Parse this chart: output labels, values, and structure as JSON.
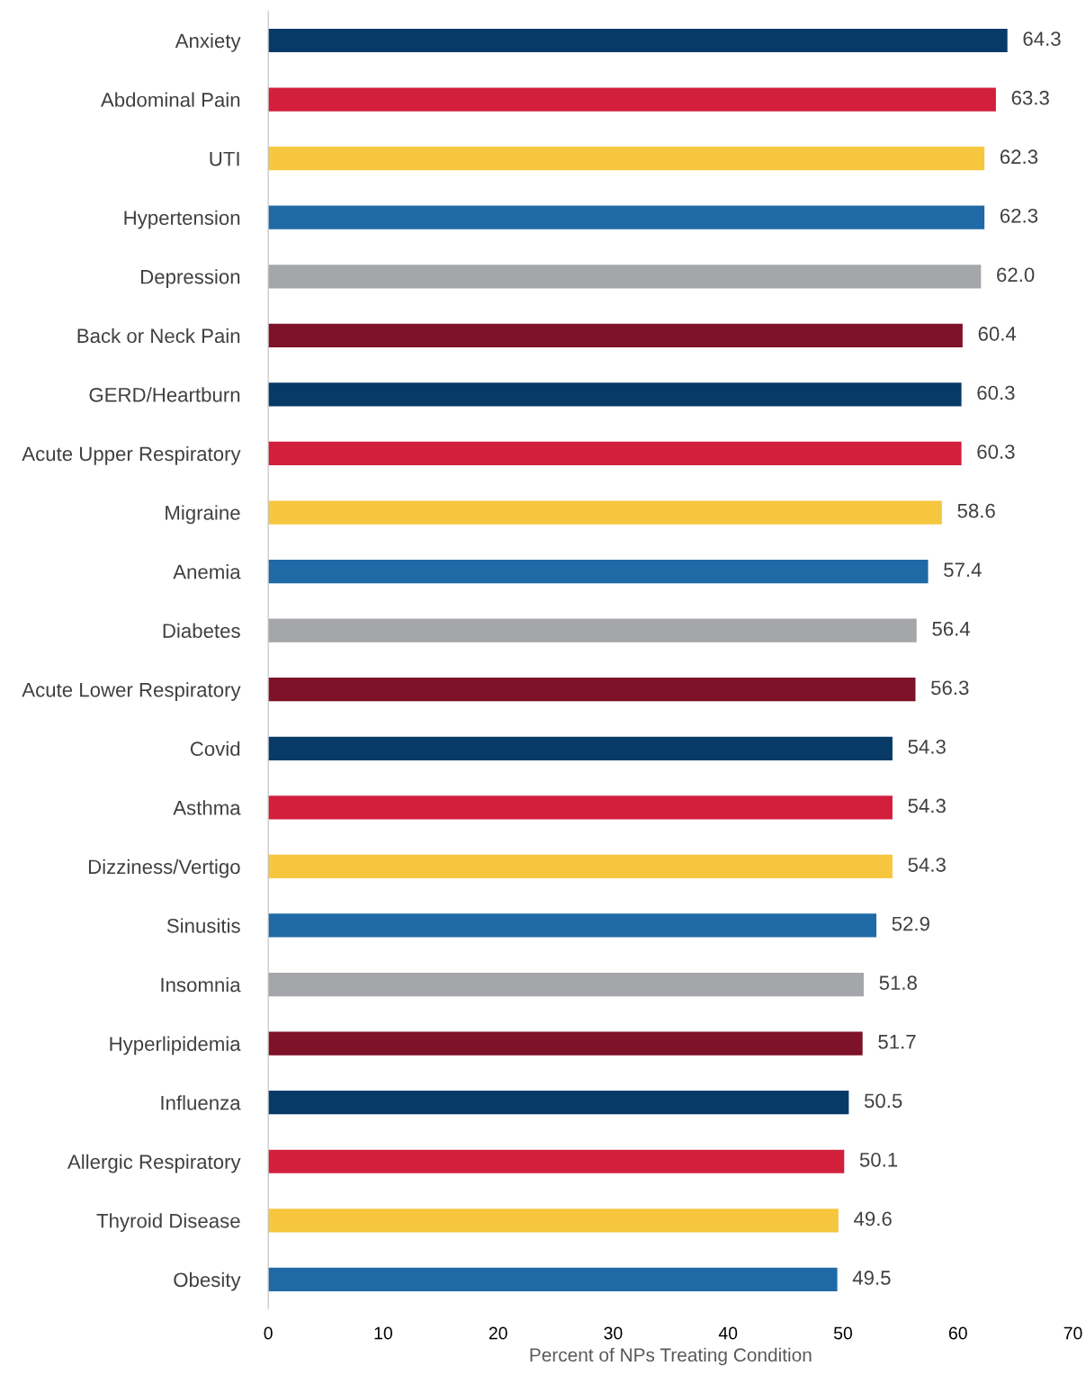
{
  "chart_data": {
    "type": "bar",
    "orientation": "horizontal",
    "xlabel": "Percent of NPs Treating Condition",
    "categories": [
      "Anxiety",
      "Abdominal Pain",
      "UTI",
      "Hypertension",
      "Depression",
      "Back or Neck Pain",
      "GERD/Heartburn",
      "Acute Upper Respiratory",
      "Migraine",
      "Anemia",
      "Diabetes",
      "Acute Lower Respiratory",
      "Covid",
      "Asthma",
      "Dizziness/Vertigo",
      "Sinusitis",
      "Insomnia",
      "Hyperlipidemia",
      "Influenza",
      "Allergic Respiratory",
      "Thyroid Disease",
      "Obesity"
    ],
    "values": [
      64.3,
      63.3,
      62.3,
      62.3,
      62.0,
      60.4,
      60.3,
      60.3,
      58.6,
      57.4,
      56.4,
      56.3,
      54.3,
      54.3,
      54.3,
      52.9,
      51.8,
      51.7,
      50.5,
      50.1,
      49.6,
      49.5
    ],
    "colors": [
      "#073a66",
      "#d11f3c",
      "#f6c73e",
      "#1f6aa6",
      "#a4a6aa",
      "#7d1228",
      "#073a66",
      "#d11f3c",
      "#f6c73e",
      "#1f6aa6",
      "#a4a6aa",
      "#7d1228",
      "#073a66",
      "#d11f3c",
      "#f6c73e",
      "#1f6aa6",
      "#a4a6aa",
      "#7d1228",
      "#073a66",
      "#d11f3c",
      "#f6c73e",
      "#1f6aa6"
    ],
    "value_labels": [
      "64.3",
      "63.3",
      "62.3",
      "62.3",
      "62.0",
      "60.4",
      "60.3",
      "60.3",
      "58.6",
      "57.4",
      "56.4",
      "56.3",
      "54.3",
      "54.3",
      "54.3",
      "52.9",
      "51.8",
      "51.7",
      "50.5",
      "50.1",
      "49.6",
      "49.5"
    ],
    "xlim": [
      0,
      70
    ],
    "xticks": [
      0,
      10,
      20,
      30,
      40,
      50,
      60,
      70
    ],
    "grid": false,
    "legend": false
  }
}
